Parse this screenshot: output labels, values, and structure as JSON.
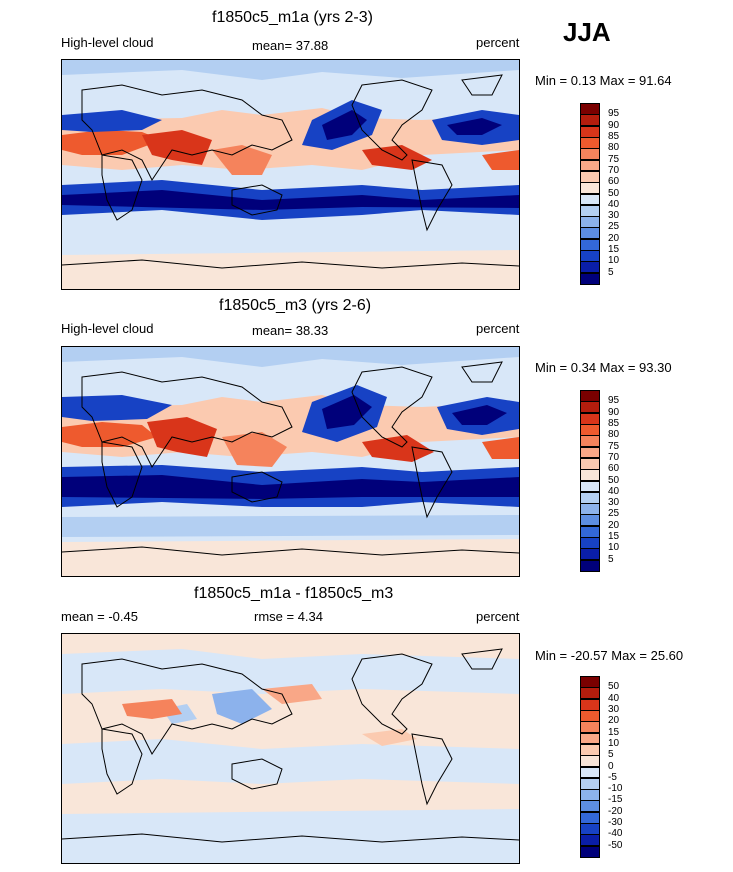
{
  "season": "JJA",
  "panels": [
    {
      "id": "m1a",
      "title": "f1850c5_m1a (yrs 2-3)",
      "left_label": "High-level cloud",
      "mean_label": "mean=  37.88",
      "units": "percent",
      "minmax": "Min =   0.13 Max =  91.64"
    },
    {
      "id": "m3",
      "title": "f1850c5_m3 (yrs 2-6)",
      "left_label": "High-level cloud",
      "mean_label": "mean=  38.33",
      "units": "percent",
      "minmax": "Min =   0.34 Max =  93.30"
    },
    {
      "id": "diff",
      "title": "f1850c5_m1a - f1850c5_m3",
      "left_label": "mean =  -0.45",
      "mean_label": "rmse =   4.34",
      "units": "percent",
      "minmax": "Min = -20.57 Max =  25.60"
    }
  ],
  "colorbar_cloud": {
    "levels": [
      "95",
      "90",
      "85",
      "80",
      "75",
      "70",
      "60",
      "50",
      "40",
      "30",
      "25",
      "20",
      "15",
      "10",
      "5"
    ],
    "colors": [
      "#7a0000",
      "#b51d0d",
      "#d9351a",
      "#ee5a2e",
      "#f5835c",
      "#f9a787",
      "#fbcab0",
      "#f9e6d9",
      "#d8e7f8",
      "#b3cff2",
      "#8cb2ec",
      "#5d8ee3",
      "#3368d8",
      "#1742c4",
      "#0a1ea8",
      "#00007a"
    ]
  },
  "colorbar_diff": {
    "levels": [
      "50",
      "40",
      "30",
      "20",
      "15",
      "10",
      "5",
      "0",
      "-5",
      "-10",
      "-15",
      "-20",
      "-30",
      "-40",
      "-50"
    ],
    "colors": [
      "#7a0000",
      "#b51d0d",
      "#d9351a",
      "#ee5a2e",
      "#f5835c",
      "#f9a787",
      "#fbcab0",
      "#f9e6d9",
      "#d8e7f8",
      "#b3cff2",
      "#8cb2ec",
      "#5d8ee3",
      "#3368d8",
      "#1742c4",
      "#0a1ea8",
      "#00007a"
    ]
  },
  "chart_data": [
    {
      "type": "heatmap",
      "title": "f1850c5_m1a (yrs 2-3)",
      "variable": "High-level cloud",
      "units": "percent",
      "mean": 37.88,
      "min": 0.13,
      "max": 91.64,
      "levels": [
        5,
        10,
        15,
        20,
        25,
        30,
        40,
        50,
        60,
        70,
        75,
        80,
        85,
        90,
        95
      ]
    },
    {
      "type": "heatmap",
      "title": "f1850c5_m3 (yrs 2-6)",
      "variable": "High-level cloud",
      "units": "percent",
      "mean": 38.33,
      "min": 0.34,
      "max": 93.3,
      "levels": [
        5,
        10,
        15,
        20,
        25,
        30,
        40,
        50,
        60,
        70,
        75,
        80,
        85,
        90,
        95
      ]
    },
    {
      "type": "heatmap",
      "title": "f1850c5_m1a - f1850c5_m3",
      "units": "percent",
      "mean": -0.45,
      "rmse": 4.34,
      "min": -20.57,
      "max": 25.6,
      "levels": [
        -50,
        -40,
        -30,
        -20,
        -15,
        -10,
        -5,
        0,
        5,
        10,
        15,
        20,
        30,
        40,
        50
      ]
    }
  ]
}
